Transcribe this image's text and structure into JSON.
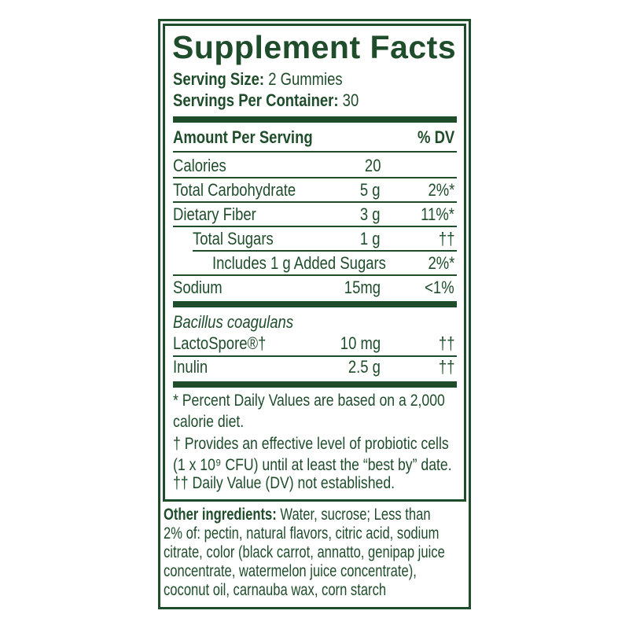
{
  "title": "Supplement Facts",
  "serving_size": {
    "label": "Serving Size:",
    "value": "2 Gummies"
  },
  "servings_per_container": {
    "label": "Servings Per Container:",
    "value": "30"
  },
  "header": {
    "amount": "Amount Per Serving",
    "dv": "% DV"
  },
  "rows": [
    {
      "label": "Calories",
      "amount": "20",
      "dv": ""
    },
    {
      "label": "Total Carbohydrate",
      "amount": "5 g",
      "dv": "2%*"
    },
    {
      "label": "Dietary Fiber",
      "amount": "3 g",
      "dv": "11%*"
    },
    {
      "label": "Total Sugars",
      "amount": "1 g",
      "dv": "††"
    },
    {
      "label": "Includes 1 g Added Sugars",
      "amount": "",
      "dv": "2%*"
    },
    {
      "label": "Sodium",
      "amount": "15mg",
      "dv": "<1%"
    }
  ],
  "probiotic": {
    "species": "Bacillus coagulans",
    "label": "LactoSpore®†",
    "amount": "10 mg",
    "dv": "††"
  },
  "inulin": {
    "label": "Inulin",
    "amount": "2.5 g",
    "dv": "††"
  },
  "footnotes": [
    "* Percent Daily Values are based on a 2,000",
    "calorie diet.",
    "† Provides an effective level of probiotic cells",
    "(1 x 10⁹ CFU) until at least the “best by” date.",
    "†† Daily Value (DV) not established."
  ],
  "ingredients": {
    "label": "Other ingredients:",
    "lines": [
      " Water, sucrose; Less than",
      "2% of: pectin, natural flavors, citric acid, sodium",
      "citrate, color (black carrot, annatto, genipap juice",
      "concentrate, watermelon juice concentrate),",
      "coconut oil, carnauba wax, corn starch"
    ]
  },
  "colors": {
    "ink": "#1f4d2b",
    "background": "#ffffff"
  }
}
